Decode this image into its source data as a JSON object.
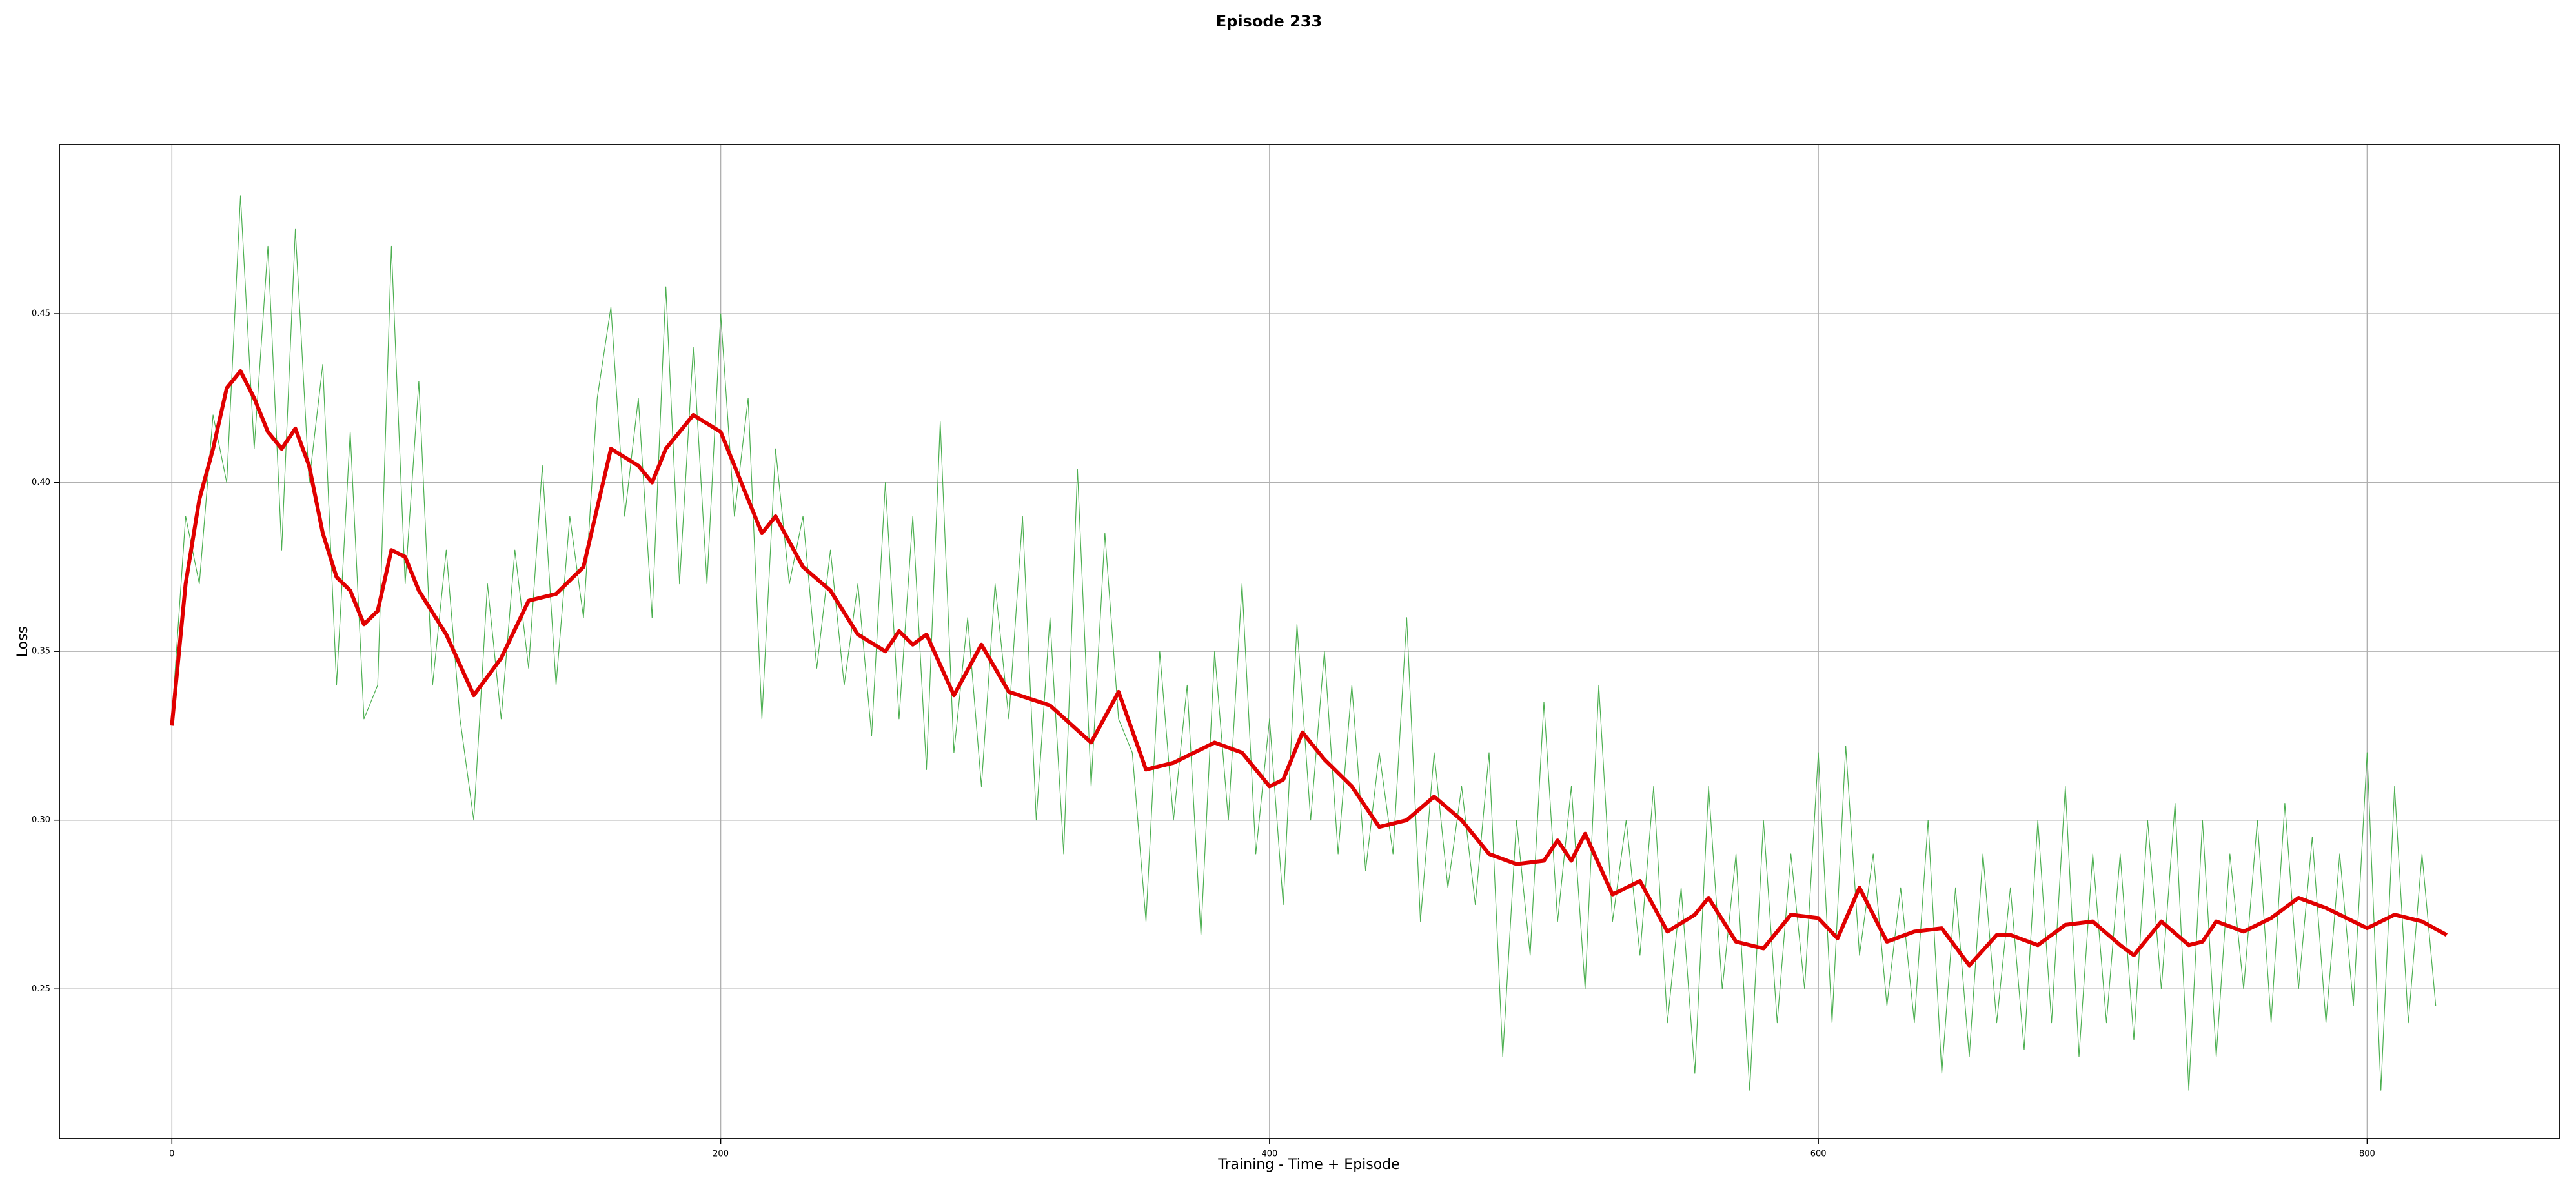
{
  "chart_data": {
    "type": "line",
    "title": "Episode 233",
    "xlabel": "Training - Time + Episode",
    "ylabel": "Loss",
    "xlim": [
      -41,
      870
    ],
    "ylim": [
      0.2057,
      0.5001
    ],
    "xticks": [
      0,
      200,
      400,
      600,
      800
    ],
    "yticks": [
      0.25,
      {
        "value": 0.3,
        "label": "0.30"
      },
      0.35,
      {
        "value": 0.4,
        "label": "0.40"
      },
      0.45
    ],
    "grid": true,
    "series": [
      {
        "color": "#4caf50",
        "width": 1.2,
        "x": [
          0,
          5,
          10,
          15,
          20,
          25,
          30,
          35,
          40,
          45,
          50,
          55,
          60,
          65,
          70,
          75,
          80,
          85,
          90,
          95,
          100,
          105,
          110,
          115,
          120,
          125,
          130,
          135,
          140,
          145,
          150,
          155,
          160,
          165,
          170,
          175,
          180,
          185,
          190,
          195,
          200,
          205,
          210,
          215,
          220,
          225,
          230,
          235,
          240,
          245,
          250,
          255,
          260,
          265,
          270,
          275,
          280,
          285,
          290,
          295,
          300,
          305,
          310,
          315,
          320,
          325,
          330,
          335,
          340,
          345,
          350,
          355,
          360,
          365,
          370,
          375,
          380,
          385,
          390,
          395,
          400,
          405,
          410,
          415,
          420,
          425,
          430,
          435,
          440,
          445,
          450,
          455,
          460,
          465,
          470,
          475,
          480,
          485,
          490,
          495,
          500,
          505,
          510,
          515,
          520,
          525,
          530,
          535,
          540,
          545,
          550,
          555,
          560,
          565,
          570,
          575,
          580,
          585,
          590,
          595,
          600,
          605,
          610,
          615,
          620,
          625,
          630,
          635,
          640,
          645,
          650,
          655,
          660,
          665,
          670,
          675,
          680,
          685,
          690,
          695,
          700,
          705,
          710,
          715,
          720,
          725,
          730,
          735,
          740,
          745,
          750,
          755,
          760,
          765,
          770,
          775,
          780,
          785,
          790,
          795,
          800,
          805,
          810,
          815,
          820,
          825
        ],
        "values": [
          0.33,
          0.39,
          0.37,
          0.42,
          0.4,
          0.485,
          0.41,
          0.47,
          0.38,
          0.475,
          0.4,
          0.435,
          0.34,
          0.415,
          0.33,
          0.34,
          0.47,
          0.37,
          0.43,
          0.34,
          0.38,
          0.33,
          0.3,
          0.37,
          0.33,
          0.38,
          0.345,
          0.405,
          0.34,
          0.39,
          0.36,
          0.425,
          0.452,
          0.39,
          0.425,
          0.36,
          0.458,
          0.37,
          0.44,
          0.37,
          0.45,
          0.39,
          0.425,
          0.33,
          0.41,
          0.37,
          0.39,
          0.345,
          0.38,
          0.34,
          0.37,
          0.325,
          0.4,
          0.33,
          0.39,
          0.315,
          0.418,
          0.32,
          0.36,
          0.31,
          0.37,
          0.33,
          0.39,
          0.3,
          0.36,
          0.29,
          0.404,
          0.31,
          0.385,
          0.33,
          0.32,
          0.27,
          0.35,
          0.3,
          0.34,
          0.266,
          0.35,
          0.3,
          0.37,
          0.29,
          0.33,
          0.275,
          0.358,
          0.3,
          0.35,
          0.29,
          0.34,
          0.285,
          0.32,
          0.29,
          0.36,
          0.27,
          0.32,
          0.28,
          0.31,
          0.275,
          0.32,
          0.23,
          0.3,
          0.26,
          0.335,
          0.27,
          0.31,
          0.25,
          0.34,
          0.27,
          0.3,
          0.26,
          0.31,
          0.24,
          0.28,
          0.225,
          0.31,
          0.25,
          0.29,
          0.22,
          0.3,
          0.24,
          0.29,
          0.25,
          0.32,
          0.24,
          0.322,
          0.26,
          0.29,
          0.245,
          0.28,
          0.24,
          0.3,
          0.225,
          0.28,
          0.23,
          0.29,
          0.24,
          0.28,
          0.232,
          0.3,
          0.24,
          0.31,
          0.23,
          0.29,
          0.24,
          0.29,
          0.235,
          0.3,
          0.25,
          0.305,
          0.22,
          0.3,
          0.23,
          0.29,
          0.25,
          0.3,
          0.24,
          0.305,
          0.25,
          0.295,
          0.24,
          0.29,
          0.245,
          0.32,
          0.22,
          0.31,
          0.24,
          0.29,
          0.245
        ]
      },
      {
        "color": "#e00000",
        "width": 6,
        "x": [
          0,
          5,
          10,
          15,
          20,
          25,
          30,
          35,
          40,
          45,
          50,
          55,
          60,
          65,
          70,
          75,
          80,
          85,
          90,
          100,
          110,
          120,
          130,
          140,
          150,
          160,
          170,
          175,
          180,
          190,
          200,
          210,
          215,
          220,
          230,
          240,
          250,
          260,
          265,
          270,
          275,
          285,
          295,
          305,
          320,
          335,
          345,
          355,
          365,
          380,
          390,
          400,
          405,
          412,
          420,
          430,
          440,
          450,
          460,
          470,
          480,
          490,
          500,
          505,
          510,
          515,
          525,
          535,
          545,
          555,
          560,
          570,
          580,
          590,
          600,
          607,
          615,
          625,
          635,
          645,
          655,
          665,
          670,
          680,
          690,
          700,
          710,
          715,
          725,
          735,
          740,
          745,
          755,
          765,
          775,
          785,
          800,
          810,
          820,
          829
        ],
        "values": [
          0.328,
          0.37,
          0.395,
          0.41,
          0.428,
          0.433,
          0.425,
          0.415,
          0.41,
          0.416,
          0.405,
          0.385,
          0.372,
          0.368,
          0.358,
          0.362,
          0.38,
          0.378,
          0.368,
          0.355,
          0.337,
          0.348,
          0.365,
          0.367,
          0.375,
          0.41,
          0.405,
          0.4,
          0.41,
          0.42,
          0.415,
          0.395,
          0.385,
          0.39,
          0.375,
          0.368,
          0.355,
          0.35,
          0.356,
          0.352,
          0.355,
          0.337,
          0.352,
          0.338,
          0.334,
          0.323,
          0.338,
          0.315,
          0.317,
          0.323,
          0.32,
          0.31,
          0.312,
          0.326,
          0.318,
          0.31,
          0.298,
          0.3,
          0.307,
          0.3,
          0.29,
          0.287,
          0.288,
          0.294,
          0.288,
          0.296,
          0.278,
          0.282,
          0.267,
          0.272,
          0.277,
          0.264,
          0.262,
          0.272,
          0.271,
          0.265,
          0.28,
          0.264,
          0.267,
          0.268,
          0.257,
          0.266,
          0.266,
          0.263,
          0.269,
          0.27,
          0.263,
          0.26,
          0.27,
          0.263,
          0.264,
          0.27,
          0.267,
          0.271,
          0.277,
          0.274,
          0.268,
          0.272,
          0.27,
          0.266
        ]
      }
    ]
  }
}
